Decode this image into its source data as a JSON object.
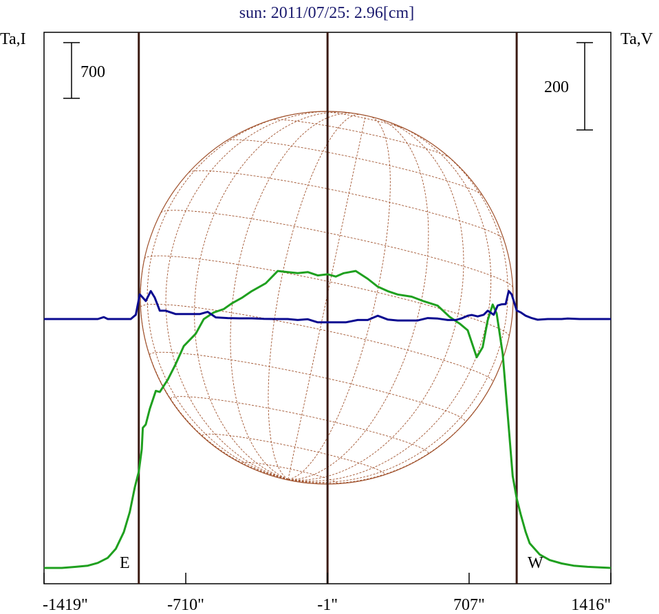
{
  "chart_data": {
    "type": "line",
    "title": "sun: 2011/07/25: 2.96[cm]",
    "left_axis_label": "Ta,I",
    "right_axis_label": "Ta,V",
    "left_scale_label": "700",
    "right_scale_label": "200",
    "east_label": "E",
    "west_label": "W",
    "xlim": [
      -1419,
      1416
    ],
    "x_ticks": [
      -1419,
      -710,
      -1,
      707,
      1416
    ],
    "x_tick_labels": [
      "-1419\"",
      "-710\"",
      "-1\"",
      "707\"",
      "1416\""
    ],
    "limb_lines_x": [
      -945,
      -1,
      945
    ],
    "grid": false,
    "colors": {
      "intensity": "#1fa01f",
      "polarization": "#0a0a90",
      "limb_lines": "#3a1a12",
      "solar_disk": "#a0522d",
      "title": "#1a1a6e",
      "frame": "#000000"
    },
    "series": [
      {
        "points": [
          [
            -1419,
            0
          ],
          [
            -1330,
            0
          ],
          [
            -1260,
            0.01
          ],
          [
            -1200,
            0.02
          ],
          [
            -1150,
            0.045
          ],
          [
            -1100,
            0.09
          ],
          [
            -1060,
            0.17
          ],
          [
            -1020,
            0.32
          ],
          [
            -990,
            0.5
          ],
          [
            -965,
            0.72
          ],
          [
            -945,
            0.86
          ],
          [
            -930,
            1.06
          ],
          [
            -925,
            1.25
          ],
          [
            -910,
            1.28
          ],
          [
            -890,
            1.42
          ],
          [
            -860,
            1.58
          ],
          [
            -840,
            1.57
          ],
          [
            -800,
            1.68
          ],
          [
            -760,
            1.82
          ],
          [
            -720,
            1.98
          ],
          [
            -660,
            2.09
          ],
          [
            -620,
            2.22
          ],
          [
            -570,
            2.28
          ],
          [
            -520,
            2.31
          ],
          [
            -480,
            2.36
          ],
          [
            -430,
            2.41
          ],
          [
            -380,
            2.47
          ],
          [
            -310,
            2.54
          ],
          [
            -250,
            2.65
          ],
          [
            -200,
            2.64
          ],
          [
            -150,
            2.63
          ],
          [
            -100,
            2.64
          ],
          [
            -50,
            2.61
          ],
          [
            0,
            2.62
          ],
          [
            40,
            2.6
          ],
          [
            80,
            2.63
          ],
          [
            140,
            2.65
          ],
          [
            200,
            2.58
          ],
          [
            250,
            2.51
          ],
          [
            300,
            2.47
          ],
          [
            350,
            2.44
          ],
          [
            420,
            2.42
          ],
          [
            480,
            2.38
          ],
          [
            550,
            2.34
          ],
          [
            610,
            2.24
          ],
          [
            660,
            2.18
          ],
          [
            700,
            2.12
          ],
          [
            745,
            1.88
          ],
          [
            775,
            1.97
          ],
          [
            800,
            2.21
          ],
          [
            825,
            2.35
          ],
          [
            845,
            2.27
          ],
          [
            875,
            1.91
          ],
          [
            905,
            1.26
          ],
          [
            925,
            0.82
          ],
          [
            945,
            0.62
          ],
          [
            965,
            0.48
          ],
          [
            990,
            0.32
          ],
          [
            1010,
            0.22
          ],
          [
            1060,
            0.12
          ],
          [
            1110,
            0.07
          ],
          [
            1170,
            0.04
          ],
          [
            1230,
            0.02
          ],
          [
            1300,
            0.01
          ],
          [
            1416,
            0
          ]
        ]
      },
      {
        "points": [
          [
            -1419,
            0
          ],
          [
            -1150,
            0
          ],
          [
            -1120,
            0.008
          ],
          [
            -1100,
            0
          ],
          [
            -985,
            0
          ],
          [
            -960,
            0.018
          ],
          [
            -940,
            0.104
          ],
          [
            -925,
            0.09
          ],
          [
            -910,
            0.076
          ],
          [
            -885,
            0.118
          ],
          [
            -865,
            0.09
          ],
          [
            -840,
            0.035
          ],
          [
            -810,
            0.035
          ],
          [
            -760,
            0.021
          ],
          [
            -700,
            0.021
          ],
          [
            -640,
            0.021
          ],
          [
            -600,
            0.03
          ],
          [
            -560,
            0.007
          ],
          [
            -500,
            0.004
          ],
          [
            -440,
            0.003
          ],
          [
            -380,
            0.003
          ],
          [
            -320,
            0.001
          ],
          [
            -260,
            0
          ],
          [
            -200,
            0
          ],
          [
            -150,
            -0.004
          ],
          [
            -100,
            -0.001
          ],
          [
            -50,
            -0.014
          ],
          [
            0,
            -0.014
          ],
          [
            40,
            -0.014
          ],
          [
            90,
            -0.014
          ],
          [
            150,
            -0.004
          ],
          [
            200,
            -0.004
          ],
          [
            250,
            0.014
          ],
          [
            300,
            -0.002
          ],
          [
            350,
            -0.006
          ],
          [
            400,
            -0.006
          ],
          [
            450,
            -0.006
          ],
          [
            500,
            0.004
          ],
          [
            550,
            0.002
          ],
          [
            600,
            -0.004
          ],
          [
            640,
            -0.004
          ],
          [
            670,
            0.003
          ],
          [
            700,
            0.014
          ],
          [
            720,
            0.017
          ],
          [
            750,
            0.011
          ],
          [
            780,
            0.018
          ],
          [
            800,
            0.035
          ],
          [
            830,
            0.018
          ],
          [
            850,
            0.057
          ],
          [
            870,
            0.062
          ],
          [
            890,
            0.063
          ],
          [
            905,
            0.118
          ],
          [
            920,
            0.104
          ],
          [
            945,
            0.036
          ],
          [
            965,
            0.028
          ],
          [
            990,
            0.014
          ],
          [
            1020,
            0.004
          ],
          [
            1050,
            -0.003
          ],
          [
            1100,
            0
          ],
          [
            1170,
            0
          ],
          [
            1200,
            0.002
          ],
          [
            1260,
            0
          ],
          [
            1416,
            0
          ]
        ]
      }
    ]
  }
}
